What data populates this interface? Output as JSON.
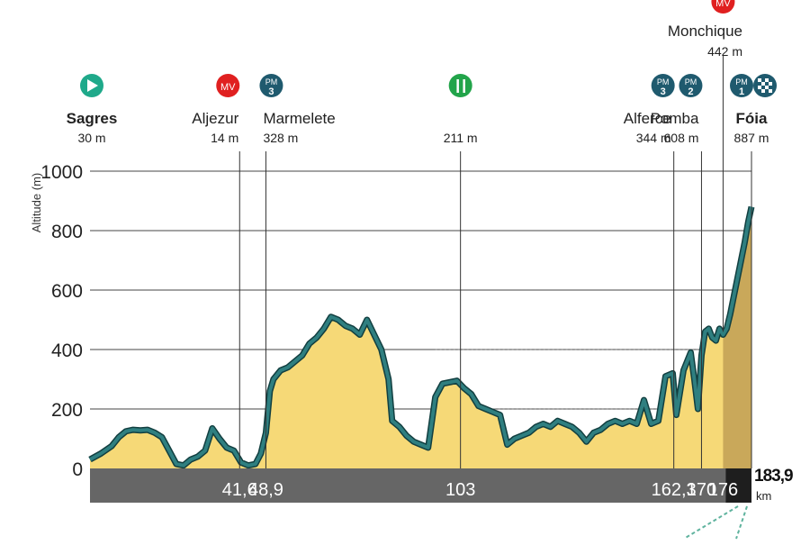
{
  "chart_data": {
    "type": "area",
    "title": "",
    "xlabel": "",
    "ylabel": "Altitude (m)",
    "ylim": [
      0,
      1000
    ],
    "xlim": [
      0,
      183.9
    ],
    "yticks": [
      "0",
      "200",
      "400",
      "600",
      "800",
      "1000"
    ],
    "x_unit": "km",
    "grid": true,
    "colors": {
      "fill": "#f6d977",
      "fill_final": "#c9a85a",
      "line": "#2f7f80",
      "axis_band": "#666666",
      "final_band": "#1e1e1e"
    },
    "km_marks": [
      {
        "km": 41.6,
        "label": "41,6"
      },
      {
        "km": 48.9,
        "label": "48,9"
      },
      {
        "km": 103,
        "label": "103"
      },
      {
        "km": 162.3,
        "label": "162,3"
      },
      {
        "km": 170,
        "label": "170"
      },
      {
        "km": 176,
        "label": "176"
      }
    ],
    "finish_km_label": "183,9",
    "waypoints": [
      {
        "km": 0,
        "name": "Sagres",
        "alt": "30 m",
        "icon": "start-icon",
        "badge": "",
        "num": "",
        "bold": true
      },
      {
        "km": 41.6,
        "name": "Aljezur",
        "alt": "14 m",
        "icon": "sprint-icon",
        "badge": "MV",
        "num": "",
        "bold": false
      },
      {
        "km": 48.9,
        "name": "Marmelete",
        "alt": "328 m",
        "icon": "mountain-icon",
        "badge": "PM",
        "num": "3",
        "bold": false
      },
      {
        "km": 103,
        "name": "",
        "alt": "211 m",
        "icon": "feed-icon",
        "badge": "",
        "num": "",
        "bold": false
      },
      {
        "km": 162.3,
        "name": "Alferce",
        "alt": "344 m",
        "icon": "mountain-icon",
        "badge": "PM",
        "num": "3",
        "bold": false
      },
      {
        "km": 170,
        "name": "Pomba",
        "alt": "608 m",
        "icon": "mountain-icon",
        "badge": "PM",
        "num": "2",
        "bold": false
      },
      {
        "km": 176,
        "name": "Monchique",
        "alt": "442 m",
        "icon": "sprint-icon",
        "badge": "MV",
        "num": "",
        "bold": false
      },
      {
        "km": 183.9,
        "name": "Fóia",
        "alt": "887 m",
        "icon": "mountain-icon",
        "badge": "PM",
        "num": "1",
        "bold": true
      }
    ],
    "profile": [
      [
        0,
        30
      ],
      [
        3,
        50
      ],
      [
        6,
        75
      ],
      [
        8,
        105
      ],
      [
        10,
        125
      ],
      [
        12,
        130
      ],
      [
        14,
        128
      ],
      [
        16,
        130
      ],
      [
        18,
        120
      ],
      [
        20,
        105
      ],
      [
        22,
        60
      ],
      [
        24,
        15
      ],
      [
        26,
        10
      ],
      [
        28,
        30
      ],
      [
        30,
        40
      ],
      [
        32,
        60
      ],
      [
        34,
        135
      ],
      [
        36,
        100
      ],
      [
        38,
        70
      ],
      [
        40,
        60
      ],
      [
        42,
        20
      ],
      [
        44,
        10
      ],
      [
        46,
        15
      ],
      [
        47.5,
        50
      ],
      [
        48.9,
        120
      ],
      [
        50,
        260
      ],
      [
        51,
        300
      ],
      [
        53,
        330
      ],
      [
        55,
        340
      ],
      [
        57,
        360
      ],
      [
        59,
        380
      ],
      [
        61,
        420
      ],
      [
        63,
        440
      ],
      [
        65,
        470
      ],
      [
        67,
        510
      ],
      [
        69,
        500
      ],
      [
        71,
        480
      ],
      [
        73,
        470
      ],
      [
        75,
        450
      ],
      [
        77,
        500
      ],
      [
        79,
        450
      ],
      [
        81,
        400
      ],
      [
        83,
        300
      ],
      [
        84,
        160
      ],
      [
        86,
        140
      ],
      [
        88,
        110
      ],
      [
        90,
        90
      ],
      [
        92,
        80
      ],
      [
        94,
        70
      ],
      [
        96,
        240
      ],
      [
        98,
        285
      ],
      [
        100,
        290
      ],
      [
        102,
        295
      ],
      [
        104,
        270
      ],
      [
        106,
        250
      ],
      [
        108,
        210
      ],
      [
        110,
        200
      ],
      [
        112,
        190
      ],
      [
        114,
        180
      ],
      [
        116,
        80
      ],
      [
        118,
        100
      ],
      [
        120,
        110
      ],
      [
        122,
        120
      ],
      [
        124,
        140
      ],
      [
        126,
        150
      ],
      [
        128,
        140
      ],
      [
        130,
        160
      ],
      [
        132,
        150
      ],
      [
        134,
        140
      ],
      [
        136,
        120
      ],
      [
        138,
        90
      ],
      [
        140,
        120
      ],
      [
        142,
        130
      ],
      [
        144,
        150
      ],
      [
        146,
        160
      ],
      [
        148,
        150
      ],
      [
        150,
        160
      ],
      [
        152,
        150
      ],
      [
        154,
        230
      ],
      [
        156,
        150
      ],
      [
        158,
        160
      ],
      [
        160,
        310
      ],
      [
        162,
        320
      ],
      [
        163,
        180
      ],
      [
        165,
        330
      ],
      [
        167,
        390
      ],
      [
        168,
        300
      ],
      [
        169,
        200
      ],
      [
        170,
        380
      ],
      [
        171,
        460
      ],
      [
        172,
        470
      ],
      [
        173,
        440
      ],
      [
        174,
        430
      ],
      [
        175,
        470
      ],
      [
        176,
        450
      ],
      [
        177,
        470
      ],
      [
        178,
        520
      ],
      [
        179,
        580
      ],
      [
        180,
        640
      ],
      [
        181,
        700
      ],
      [
        182,
        760
      ],
      [
        183,
        830
      ],
      [
        183.9,
        880
      ]
    ]
  }
}
